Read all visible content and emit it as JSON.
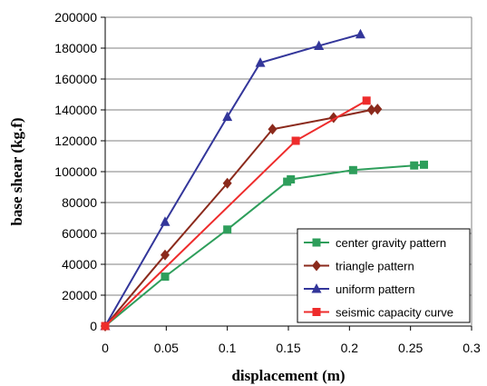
{
  "chart_data": {
    "type": "line",
    "xlabel": "displacement (m)",
    "ylabel": "base shear (kg.f)",
    "xlim": [
      0,
      0.3
    ],
    "ylim": [
      0,
      200000
    ],
    "x_ticks": [
      0,
      0.05,
      0.1,
      0.15,
      0.2,
      0.25,
      0.3
    ],
    "x_tick_labels": [
      "0",
      "0.05",
      "0.1",
      "0.15",
      "0.2",
      "0.25",
      "0.3"
    ],
    "y_ticks": [
      0,
      20000,
      40000,
      60000,
      80000,
      100000,
      120000,
      140000,
      160000,
      180000,
      200000
    ],
    "y_tick_labels": [
      "0",
      "20000",
      "40000",
      "60000",
      "80000",
      "100000",
      "120000",
      "140000",
      "160000",
      "180000",
      "200000"
    ],
    "grid": "horizontal",
    "legend_position": "bottom-right",
    "series": [
      {
        "name": "center gravity pattern",
        "color": "#2e9e5b",
        "marker": "square",
        "points": [
          [
            0,
            0
          ],
          [
            0.049,
            32000
          ],
          [
            0.1,
            62500
          ],
          [
            0.149,
            93500
          ],
          [
            0.152,
            95000
          ],
          [
            0.203,
            101000
          ],
          [
            0.253,
            104000
          ],
          [
            0.261,
            104500
          ]
        ]
      },
      {
        "name": "triangle pattern",
        "color": "#8b2a1c",
        "marker": "diamond",
        "points": [
          [
            0,
            0
          ],
          [
            0.049,
            46000
          ],
          [
            0.1,
            92500
          ],
          [
            0.137,
            127500
          ],
          [
            0.187,
            135000
          ],
          [
            0.218,
            140000
          ],
          [
            0.223,
            140500
          ]
        ]
      },
      {
        "name": "uniform pattern",
        "color": "#33369a",
        "marker": "triangle",
        "points": [
          [
            0,
            0
          ],
          [
            0.049,
            67500
          ],
          [
            0.1,
            135500
          ],
          [
            0.127,
            170500
          ],
          [
            0.175,
            181500
          ],
          [
            0.209,
            189000
          ]
        ]
      },
      {
        "name": "seismic capacity curve",
        "color": "#ee2c2c",
        "marker": "square",
        "points": [
          [
            0,
            0
          ],
          [
            0.156,
            120000
          ],
          [
            0.214,
            146000
          ]
        ]
      }
    ]
  }
}
